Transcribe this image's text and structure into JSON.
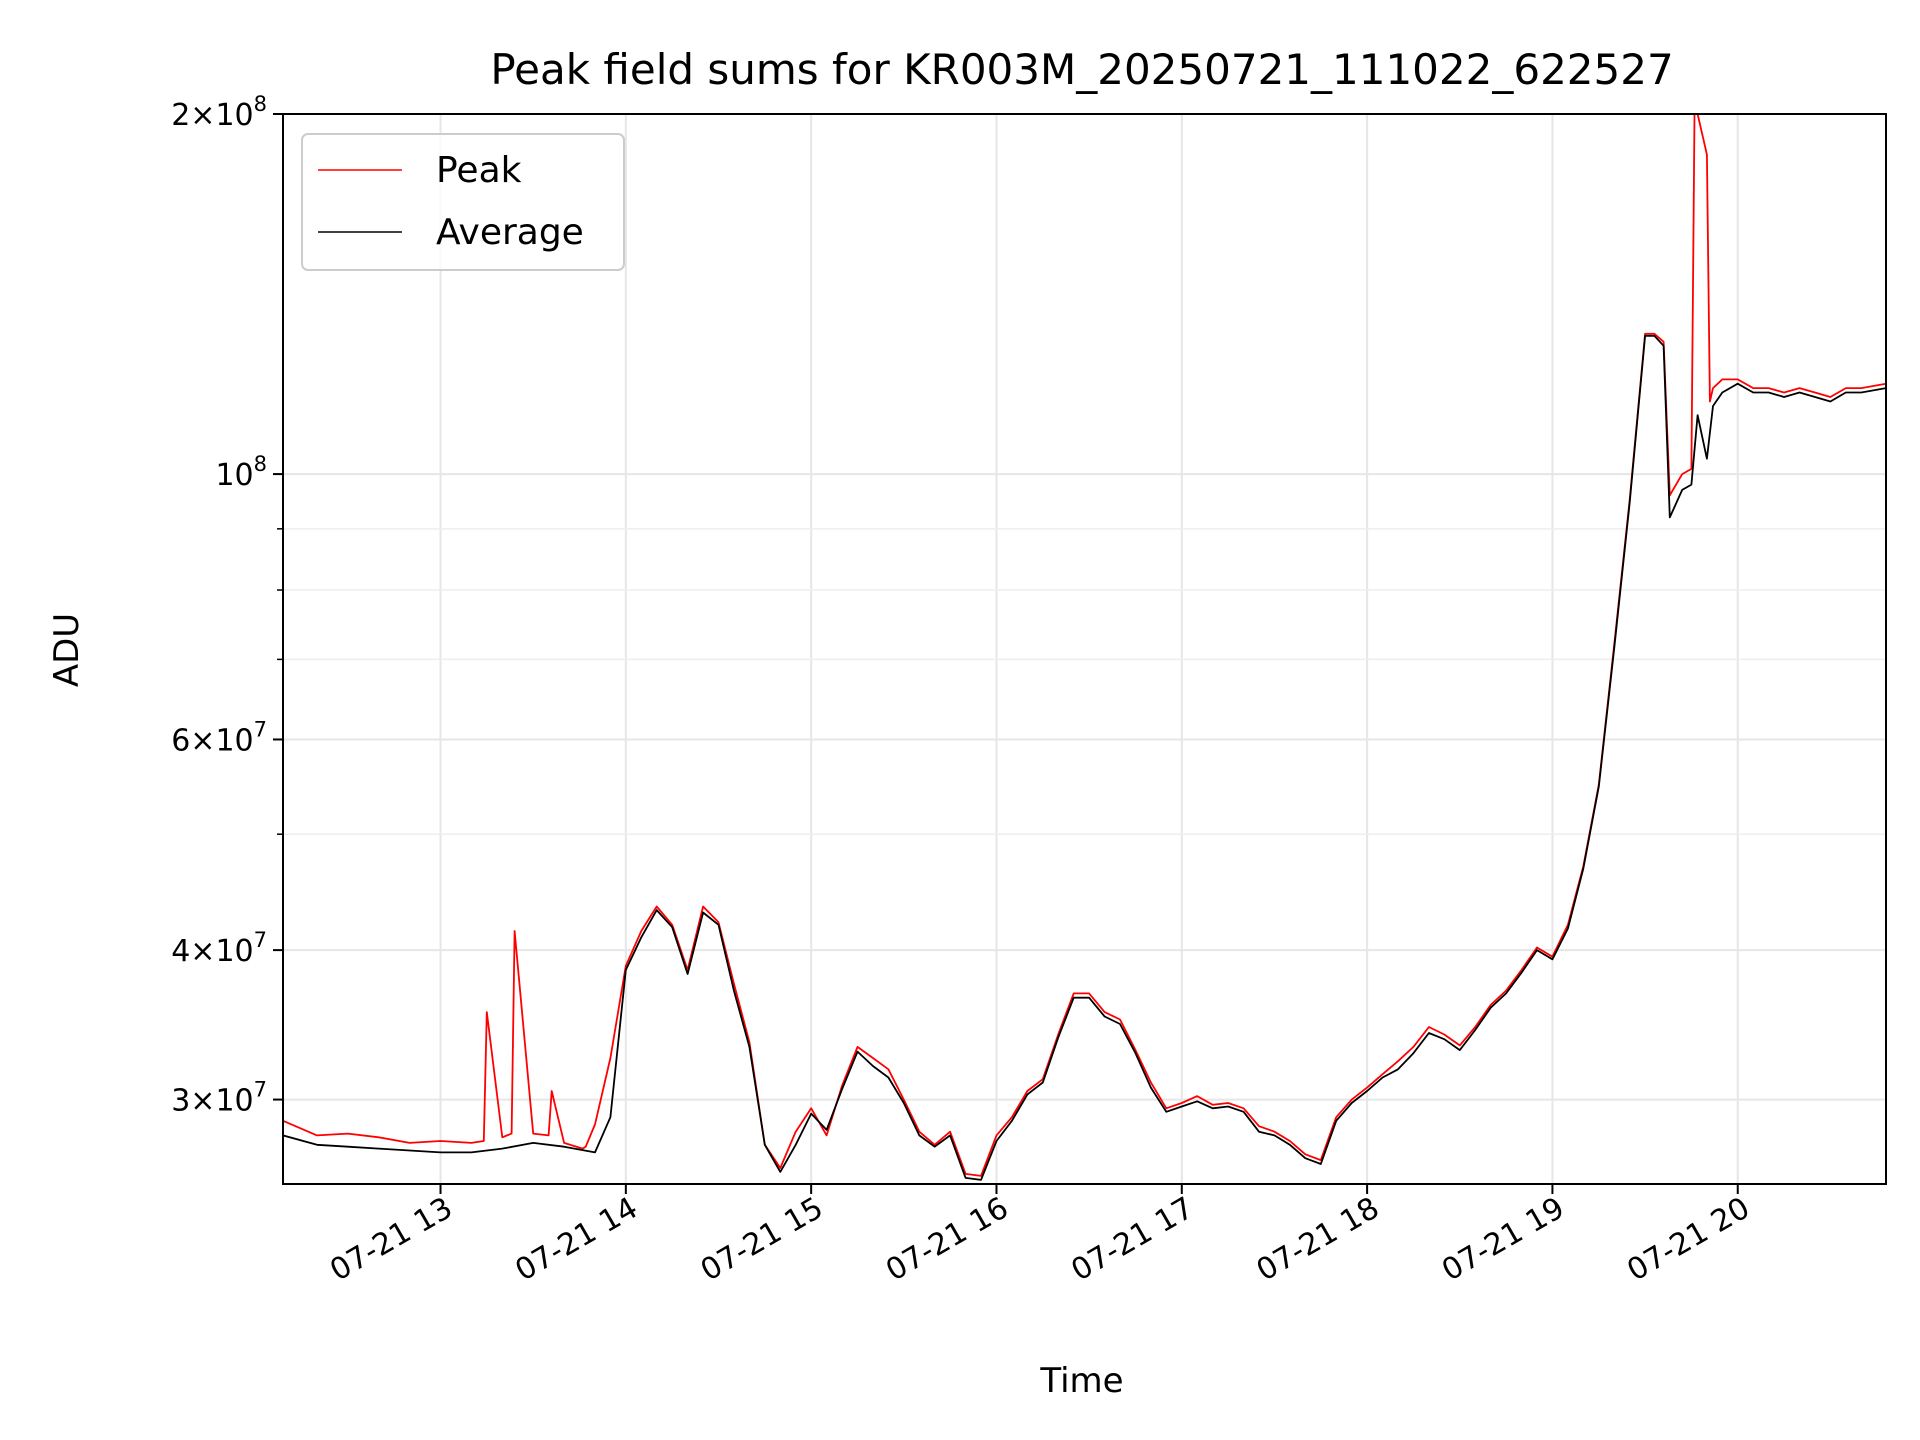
{
  "chart_data": {
    "type": "line",
    "title": "Peak field sums for KR003M_20250721_111022_622527",
    "xlabel": "Time",
    "ylabel": "ADU",
    "yscale": "log",
    "xlim": [
      "07-21 12:09",
      "07-21 20:48"
    ],
    "ylim": [
      25500000,
      200000000
    ],
    "grid": true,
    "legend_position": "upper-left",
    "x_ticks": [
      {
        "value": "07-21 13:00",
        "label": "07-21 13"
      },
      {
        "value": "07-21 14:00",
        "label": "07-21 14"
      },
      {
        "value": "07-21 15:00",
        "label": "07-21 15"
      },
      {
        "value": "07-21 16:00",
        "label": "07-21 16"
      },
      {
        "value": "07-21 17:00",
        "label": "07-21 17"
      },
      {
        "value": "07-21 18:00",
        "label": "07-21 18"
      },
      {
        "value": "07-21 19:00",
        "label": "07-21 19"
      },
      {
        "value": "07-21 20:00",
        "label": "07-21 20"
      }
    ],
    "y_ticks": [
      {
        "value": 30000000,
        "mant": "3",
        "exp": "7"
      },
      {
        "value": 40000000,
        "mant": "4",
        "exp": "7"
      },
      {
        "value": 60000000,
        "mant": "6",
        "exp": "7"
      },
      {
        "value": 100000000,
        "mant": "",
        "exp": "8"
      },
      {
        "value": 200000000,
        "mant": "2",
        "exp": "8"
      }
    ],
    "y_minor_ticks": [
      50000000,
      70000000,
      80000000,
      90000000
    ],
    "series": [
      {
        "name": "Peak",
        "color": "#ff0000",
        "x": [
          "07-21 12:09",
          "07-21 12:20",
          "07-21 12:30",
          "07-21 12:40",
          "07-21 12:50",
          "07-21 13:00",
          "07-21 13:10",
          "07-21 13:14",
          "07-21 13:15",
          "07-21 13:20",
          "07-21 13:23",
          "07-21 13:24",
          "07-21 13:30",
          "07-21 13:35",
          "07-21 13:36",
          "07-21 13:40",
          "07-21 13:46",
          "07-21 13:47",
          "07-21 13:50",
          "07-21 13:55",
          "07-21 14:00",
          "07-21 14:05",
          "07-21 14:10",
          "07-21 14:15",
          "07-21 14:20",
          "07-21 14:25",
          "07-21 14:30",
          "07-21 14:35",
          "07-21 14:40",
          "07-21 14:45",
          "07-21 14:50",
          "07-21 14:55",
          "07-21 15:00",
          "07-21 15:05",
          "07-21 15:10",
          "07-21 15:15",
          "07-21 15:20",
          "07-21 15:25",
          "07-21 15:30",
          "07-21 15:35",
          "07-21 15:40",
          "07-21 15:45",
          "07-21 15:50",
          "07-21 15:55",
          "07-21 16:00",
          "07-21 16:05",
          "07-21 16:10",
          "07-21 16:15",
          "07-21 16:20",
          "07-21 16:25",
          "07-21 16:30",
          "07-21 16:35",
          "07-21 16:40",
          "07-21 16:45",
          "07-21 16:50",
          "07-21 16:55",
          "07-21 17:00",
          "07-21 17:05",
          "07-21 17:10",
          "07-21 17:15",
          "07-21 17:20",
          "07-21 17:25",
          "07-21 17:30",
          "07-21 17:35",
          "07-21 17:40",
          "07-21 17:45",
          "07-21 17:50",
          "07-21 17:55",
          "07-21 18:00",
          "07-21 18:05",
          "07-21 18:10",
          "07-21 18:15",
          "07-21 18:20",
          "07-21 18:25",
          "07-21 18:30",
          "07-21 18:35",
          "07-21 18:40",
          "07-21 18:45",
          "07-21 18:50",
          "07-21 18:55",
          "07-21 19:00",
          "07-21 19:05",
          "07-21 19:10",
          "07-21 19:15",
          "07-21 19:20",
          "07-21 19:25",
          "07-21 19:30",
          "07-21 19:33",
          "07-21 19:36",
          "07-21 19:38",
          "07-21 19:42",
          "07-21 19:45",
          "07-21 19:46",
          "07-21 19:47",
          "07-21 19:50",
          "07-21 19:51",
          "07-21 19:52",
          "07-21 19:55",
          "07-21 20:00",
          "07-21 20:05",
          "07-21 20:10",
          "07-21 20:15",
          "07-21 20:20",
          "07-21 20:25",
          "07-21 20:30",
          "07-21 20:35",
          "07-21 20:40",
          "07-21 20:48"
        ],
        "values": [
          28800000,
          28000000,
          28100000,
          27900000,
          27600000,
          27700000,
          27600000,
          27700000,
          35500000,
          27900000,
          28100000,
          41500000,
          28100000,
          28000000,
          30500000,
          27600000,
          27300000,
          27400000,
          28600000,
          32500000,
          38800000,
          41500000,
          43500000,
          42000000,
          38500000,
          43500000,
          42200000,
          37500000,
          33500000,
          27500000,
          26300000,
          28200000,
          29500000,
          28000000,
          30800000,
          33200000,
          32500000,
          31800000,
          30000000,
          28200000,
          27500000,
          28200000,
          26000000,
          25900000,
          28000000,
          29000000,
          30500000,
          31200000,
          34000000,
          36800000,
          36800000,
          35500000,
          35000000,
          33000000,
          31000000,
          29500000,
          29800000,
          30200000,
          29700000,
          29800000,
          29500000,
          28500000,
          28200000,
          27700000,
          27000000,
          26700000,
          29000000,
          30000000,
          30700000,
          31500000,
          32300000,
          33200000,
          34500000,
          34000000,
          33300000,
          34500000,
          36000000,
          37000000,
          38500000,
          40200000,
          39500000,
          42000000,
          47000000,
          55000000,
          72000000,
          95000000,
          131000000,
          131000000,
          129000000,
          96000000,
          100000000,
          101000000,
          200000000,
          200000000,
          185000000,
          115000000,
          118000000,
          120000000,
          120000000,
          118000000,
          118000000,
          117000000,
          118000000,
          117000000,
          116000000,
          118000000,
          118000000,
          119000000
        ]
      },
      {
        "name": "Average",
        "color": "#000000",
        "x": [
          "07-21 12:09",
          "07-21 12:20",
          "07-21 12:30",
          "07-21 12:40",
          "07-21 12:50",
          "07-21 13:00",
          "07-21 13:10",
          "07-21 13:20",
          "07-21 13:30",
          "07-21 13:40",
          "07-21 13:50",
          "07-21 13:55",
          "07-21 14:00",
          "07-21 14:05",
          "07-21 14:10",
          "07-21 14:15",
          "07-21 14:20",
          "07-21 14:25",
          "07-21 14:30",
          "07-21 14:35",
          "07-21 14:40",
          "07-21 14:45",
          "07-21 14:50",
          "07-21 14:55",
          "07-21 15:00",
          "07-21 15:05",
          "07-21 15:10",
          "07-21 15:15",
          "07-21 15:20",
          "07-21 15:25",
          "07-21 15:30",
          "07-21 15:35",
          "07-21 15:40",
          "07-21 15:45",
          "07-21 15:50",
          "07-21 15:55",
          "07-21 16:00",
          "07-21 16:05",
          "07-21 16:10",
          "07-21 16:15",
          "07-21 16:20",
          "07-21 16:25",
          "07-21 16:30",
          "07-21 16:35",
          "07-21 16:40",
          "07-21 16:45",
          "07-21 16:50",
          "07-21 16:55",
          "07-21 17:00",
          "07-21 17:05",
          "07-21 17:10",
          "07-21 17:15",
          "07-21 17:20",
          "07-21 17:25",
          "07-21 17:30",
          "07-21 17:35",
          "07-21 17:40",
          "07-21 17:45",
          "07-21 17:50",
          "07-21 17:55",
          "07-21 18:00",
          "07-21 18:05",
          "07-21 18:10",
          "07-21 18:15",
          "07-21 18:20",
          "07-21 18:25",
          "07-21 18:30",
          "07-21 18:35",
          "07-21 18:40",
          "07-21 18:45",
          "07-21 18:50",
          "07-21 18:55",
          "07-21 19:00",
          "07-21 19:05",
          "07-21 19:10",
          "07-21 19:15",
          "07-21 19:20",
          "07-21 19:25",
          "07-21 19:30",
          "07-21 19:33",
          "07-21 19:36",
          "07-21 19:38",
          "07-21 19:42",
          "07-21 19:45",
          "07-21 19:47",
          "07-21 19:50",
          "07-21 19:52",
          "07-21 19:55",
          "07-21 20:00",
          "07-21 20:05",
          "07-21 20:10",
          "07-21 20:15",
          "07-21 20:20",
          "07-21 20:25",
          "07-21 20:30",
          "07-21 20:35",
          "07-21 20:40",
          "07-21 20:48"
        ],
        "values": [
          28000000,
          27500000,
          27400000,
          27300000,
          27200000,
          27100000,
          27100000,
          27300000,
          27600000,
          27400000,
          27100000,
          29000000,
          38500000,
          41000000,
          43200000,
          41800000,
          38200000,
          43000000,
          42000000,
          37000000,
          33200000,
          27500000,
          26100000,
          27500000,
          29200000,
          28300000,
          30600000,
          32900000,
          32000000,
          31300000,
          29800000,
          28000000,
          27400000,
          28000000,
          25800000,
          25700000,
          27700000,
          28800000,
          30300000,
          31000000,
          33800000,
          36500000,
          36500000,
          35200000,
          34700000,
          32800000,
          30700000,
          29300000,
          29600000,
          29900000,
          29500000,
          29600000,
          29300000,
          28200000,
          28000000,
          27500000,
          26800000,
          26500000,
          28800000,
          29800000,
          30500000,
          31300000,
          31800000,
          32800000,
          34100000,
          33700000,
          33000000,
          34300000,
          35800000,
          36800000,
          38300000,
          40000000,
          39300000,
          41700000,
          46800000,
          54800000,
          71500000,
          94500000,
          130500000,
          130500000,
          128000000,
          92000000,
          97000000,
          98000000,
          112000000,
          103000000,
          114000000,
          117000000,
          119000000,
          117000000,
          117000000,
          116000000,
          117000000,
          116000000,
          115000000,
          117000000,
          117000000,
          118000000
        ]
      }
    ]
  }
}
